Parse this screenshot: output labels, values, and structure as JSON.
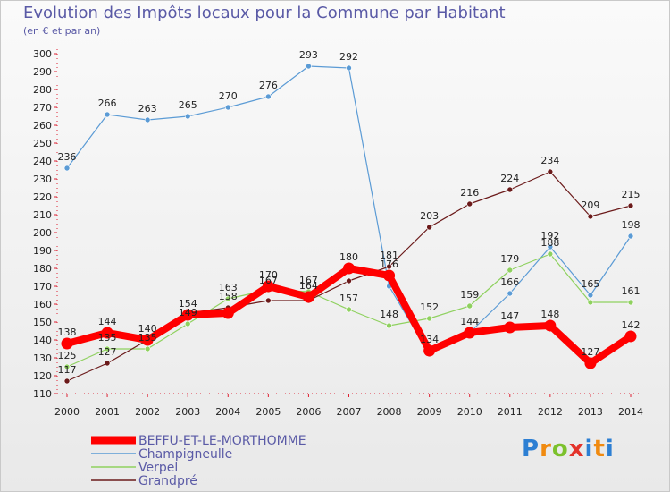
{
  "header": {
    "title": "Evolution des Impôts locaux pour la Commune par Habitant",
    "subtitle": "(en € et par an)"
  },
  "logo": {
    "text": "Proxiti"
  },
  "colors": {
    "BEFFU-ET-LE-MORTHOMME": "#ff0000",
    "Champigneulle": "#5b9bd5",
    "Verpel": "#8fd15f",
    "Grandpré": "#6b1a1a"
  },
  "chart_data": {
    "type": "line",
    "title": "Evolution des Impôts locaux pour la Commune par Habitant",
    "subtitle": "(en € et par an)",
    "xlabel": "",
    "ylabel": "",
    "categories": [
      "2000",
      "2001",
      "2002",
      "2003",
      "2004",
      "2005",
      "2006",
      "2007",
      "2008",
      "2009",
      "2010",
      "2011",
      "2012",
      "2013",
      "2014"
    ],
    "ylim": [
      110,
      300
    ],
    "yticks": [
      110,
      120,
      130,
      140,
      150,
      160,
      170,
      180,
      190,
      200,
      210,
      220,
      230,
      240,
      250,
      260,
      270,
      280,
      290,
      300
    ],
    "grid": false,
    "legend_position": "bottom-left",
    "series": [
      {
        "name": "BEFFU-ET-LE-MORTHOMME",
        "values": [
          138,
          144,
          140,
          154,
          155,
          170,
          164,
          180,
          176,
          134,
          144,
          147,
          148,
          127,
          142
        ],
        "color": "#ff0000",
        "width": 8
      },
      {
        "name": "Champigneulle",
        "values": [
          236,
          266,
          263,
          265,
          270,
          276,
          293,
          292,
          170,
          132,
          144,
          166,
          192,
          165,
          198
        ],
        "color": "#5b9bd5",
        "width": 1.2
      },
      {
        "name": "Verpel",
        "values": [
          125,
          135,
          135,
          149,
          163,
          168,
          167,
          157,
          148,
          152,
          159,
          179,
          188,
          161,
          161
        ],
        "color": "#8fd15f",
        "width": 1.2
      },
      {
        "name": "Grandpré",
        "values": [
          117,
          127,
          140,
          155,
          158,
          162,
          162,
          173,
          181,
          203,
          216,
          224,
          234,
          209,
          215
        ],
        "color": "#6b1a1a",
        "width": 1.2
      }
    ],
    "data_labels": [
      {
        "x": "2000",
        "text": "236"
      },
      {
        "x": "2001",
        "text": "266"
      },
      {
        "x": "2002",
        "text": "263"
      },
      {
        "x": "2003",
        "text": "265"
      },
      {
        "x": "2004",
        "text": "270"
      },
      {
        "x": "2005",
        "text": "276"
      },
      {
        "x": "2006",
        "text": "293"
      },
      {
        "x": "2007",
        "text": "292"
      },
      {
        "x": "2009",
        "text": "203"
      },
      {
        "x": "2010",
        "text": "216"
      },
      {
        "x": "2011",
        "text": "224"
      },
      {
        "x": "2012",
        "text": "234"
      },
      {
        "x": "2013",
        "text": "209"
      },
      {
        "x": "2014",
        "text": "215"
      },
      {
        "x": "2000",
        "text": "138"
      },
      {
        "x": "2001",
        "text": "144"
      },
      {
        "x": "2002",
        "text": "140"
      },
      {
        "x": "2003",
        "text": "154"
      },
      {
        "x": "2004",
        "text": "163"
      },
      {
        "x": "2005",
        "text": "170"
      },
      {
        "x": "2006",
        "text": "167"
      },
      {
        "x": "2007",
        "text": "180"
      },
      {
        "x": "2008",
        "text": "181"
      },
      {
        "x": "2008",
        "text": "176"
      },
      {
        "x": "2009",
        "text": "152"
      },
      {
        "x": "2010",
        "text": "159"
      },
      {
        "x": "2011",
        "text": "179"
      },
      {
        "x": "2012",
        "text": "192"
      },
      {
        "x": "2012",
        "text": "188"
      },
      {
        "x": "2014",
        "text": "198"
      },
      {
        "x": "2014",
        "text": "161"
      },
      {
        "x": "2007",
        "text": "157"
      },
      {
        "x": "2008",
        "text": "148"
      },
      {
        "x": "2011",
        "text": "166"
      },
      {
        "x": "2013",
        "text": "165"
      },
      {
        "x": "2000",
        "text": "125"
      },
      {
        "x": "2000",
        "text": "117"
      },
      {
        "x": "2001",
        "text": "135"
      },
      {
        "x": "2001",
        "text": "127"
      },
      {
        "x": "2002",
        "text": "135"
      },
      {
        "x": "2003",
        "text": "149"
      },
      {
        "x": "2004",
        "text": "158"
      },
      {
        "x": "2005",
        "text": "167"
      },
      {
        "x": "2006",
        "text": "164"
      },
      {
        "x": "2009",
        "text": "134"
      },
      {
        "x": "2010",
        "text": "144"
      },
      {
        "x": "2011",
        "text": "147"
      },
      {
        "x": "2012",
        "text": "148"
      },
      {
        "x": "2013",
        "text": "127"
      },
      {
        "x": "2014",
        "text": "142"
      }
    ]
  }
}
